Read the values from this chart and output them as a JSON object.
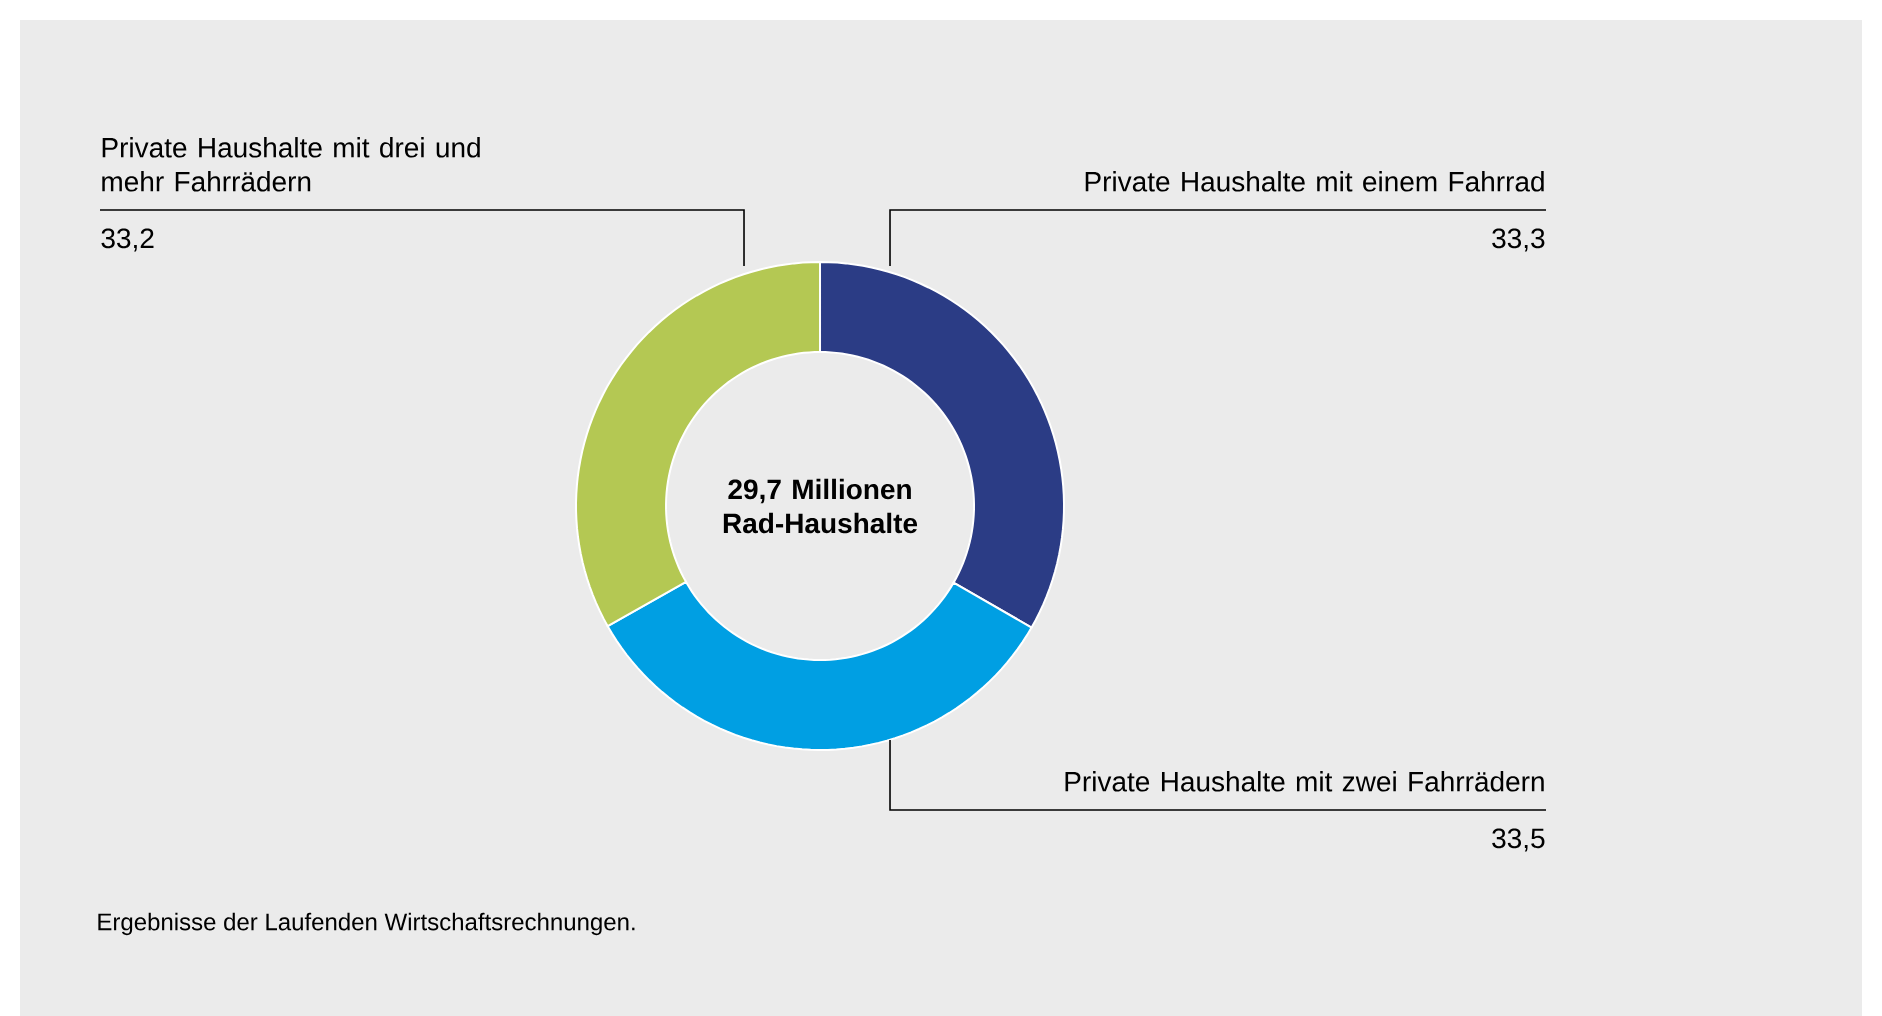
{
  "chart_data": {
    "type": "donut",
    "title": "29,7 Millionen Rad-Haushalte",
    "categories": [
      "Private Haushalte mit einem Fahrrad",
      "Private Haushalte mit zwei Fahrrädern",
      "Private Haushalte mit drei und mehr Fahrrädern"
    ],
    "values": [
      33.3,
      33.5,
      33.2
    ],
    "value_labels": [
      "33,3",
      "33,5",
      "33,2"
    ],
    "colors": [
      "#2b3c85",
      "#009fe3",
      "#b4c853"
    ],
    "annotations": [
      "Ergebnisse der Laufenden Wirtschaftsrechnungen."
    ]
  }
}
